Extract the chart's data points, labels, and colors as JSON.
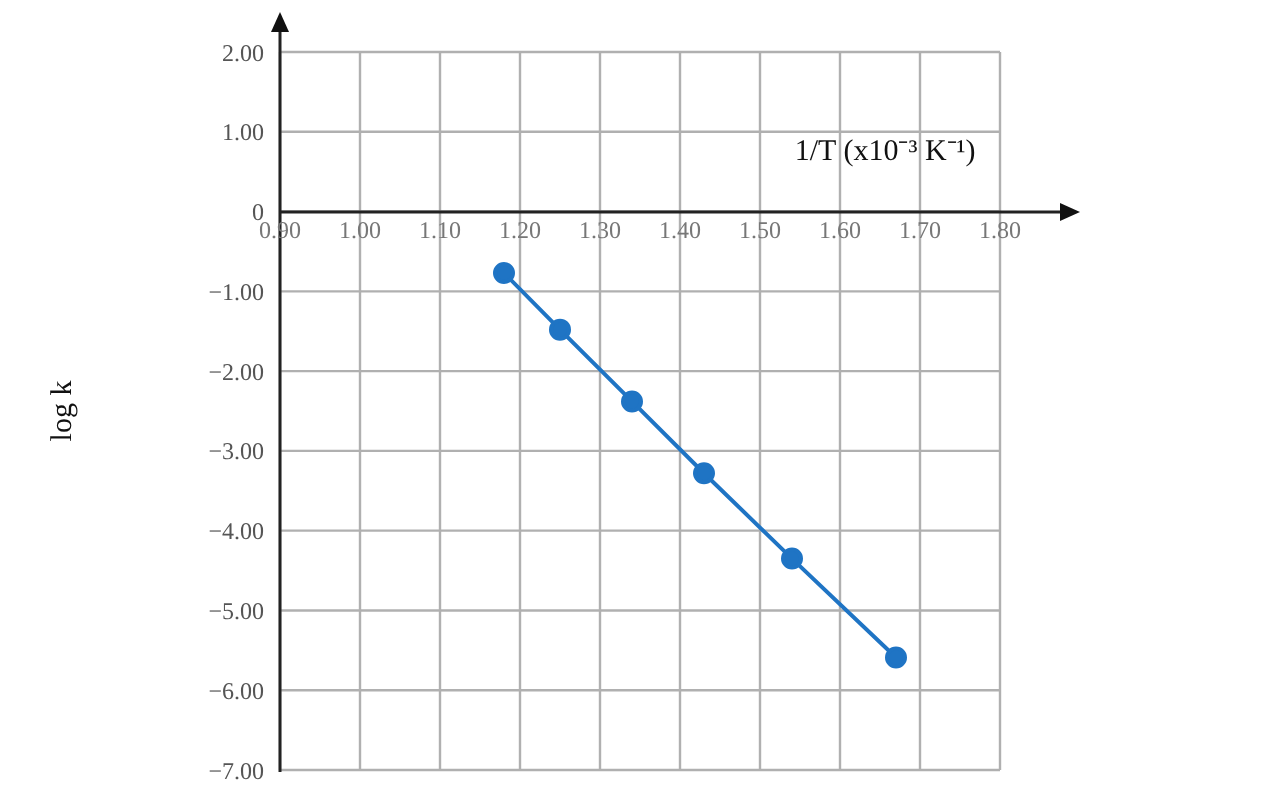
{
  "chart_data": {
    "type": "line",
    "xlabel": "1/T (x10⁻³ K⁻¹)",
    "ylabel": "log k",
    "x": [
      1.18,
      1.25,
      1.34,
      1.43,
      1.54,
      1.67
    ],
    "values": [
      -0.77,
      -1.48,
      -2.38,
      -3.28,
      -4.35,
      -5.59
    ],
    "color": "#1f74c4",
    "marker": "circle",
    "line_style": "solid",
    "grid": true,
    "xlim": [
      0.9,
      1.8
    ],
    "xticks": [
      {
        "value": 0.9,
        "label": "0.90"
      },
      {
        "value": 1.0,
        "label": "1.00"
      },
      {
        "value": 1.1,
        "label": "1.10"
      },
      {
        "value": 1.2,
        "label": "1.20"
      },
      {
        "value": 1.3,
        "label": "1.30"
      },
      {
        "value": 1.4,
        "label": "1.40"
      },
      {
        "value": 1.5,
        "label": "1.50"
      },
      {
        "value": 1.6,
        "label": "1.60"
      },
      {
        "value": 1.7,
        "label": "1.70"
      },
      {
        "value": 1.8,
        "label": "1.80"
      }
    ],
    "ylim": [
      -7,
      2
    ],
    "yticks": [
      {
        "value": 2,
        "label": "2.00"
      },
      {
        "value": 1,
        "label": "1.00"
      },
      {
        "value": 0,
        "label": "0"
      },
      {
        "value": -1,
        "label": "−1.00"
      },
      {
        "value": -2,
        "label": "−2.00"
      },
      {
        "value": -3,
        "label": "−3.00"
      },
      {
        "value": -4,
        "label": "−4.00"
      },
      {
        "value": -5,
        "label": "−5.00"
      },
      {
        "value": -6,
        "label": "−6.00"
      },
      {
        "value": -7,
        "label": "−7.00"
      }
    ]
  }
}
